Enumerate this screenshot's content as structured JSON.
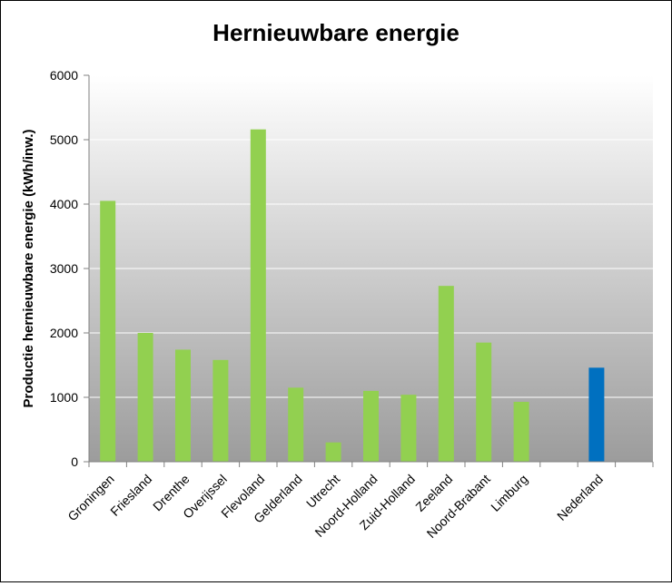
{
  "chart_data": {
    "type": "bar",
    "title": "Hernieuwbare energie",
    "ylabel": "Productie  hernieuwbare  energie  (kWh/inw.)",
    "xlabel": "",
    "ylim": [
      0,
      6000
    ],
    "yticks": [
      "0",
      "1000",
      "2000",
      "3000",
      "4000",
      "5000",
      "6000"
    ],
    "grid": true,
    "categories": [
      "Groningen",
      "Friesland",
      "Drenthe",
      "Overijssel",
      "Flevoland",
      "Gelderland",
      "Utrecht",
      "Noord-Holland",
      "Zuid-Holland",
      "Zeeland",
      "Noord-Brabant",
      "Limburg",
      "",
      "Nederland",
      ""
    ],
    "values": [
      4050,
      2000,
      1740,
      1580,
      5160,
      1150,
      300,
      1100,
      1040,
      2730,
      1850,
      930,
      null,
      1460,
      null
    ],
    "colors": {
      "province_bar": "#92d050",
      "national_bar": "#0070c0"
    }
  }
}
